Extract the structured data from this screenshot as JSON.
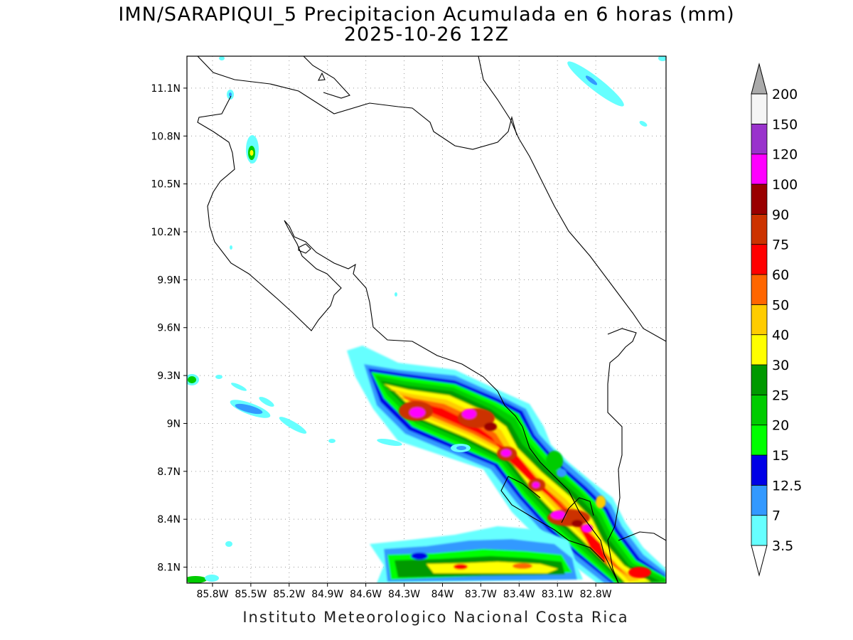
{
  "title": "IMN/SARAPIQUI_5 Precipitacion Acumulada en 6 horas (mm)",
  "subtitle": "2025-10-26 12Z",
  "credit": "Instituto Meteorologico Nacional Costa Rica",
  "map": {
    "lon_range": [
      -86.0,
      -82.25
    ],
    "lat_range": [
      8.0,
      11.3
    ],
    "lon_ticks": [
      "85.8W",
      "85.5W",
      "85.2W",
      "84.9W",
      "84.6W",
      "84.3W",
      "84W",
      "83.7W",
      "83.4W",
      "83.1W",
      "82.8W"
    ],
    "lat_ticks": [
      "11.1N",
      "10.8N",
      "10.5N",
      "10.2N",
      "9.9N",
      "9.6N",
      "9.3N",
      "9N",
      "8.7N",
      "8.4N",
      "8.1N"
    ],
    "grid": true
  },
  "colorbar": {
    "levels": [
      "3.5",
      "7",
      "12.5",
      "15",
      "20",
      "25",
      "30",
      "40",
      "50",
      "60",
      "75",
      "90",
      "100",
      "120",
      "150",
      "200"
    ],
    "colors": [
      "#66ffff",
      "#3399ff",
      "#0000e6",
      "#00ff00",
      "#00cc00",
      "#009900",
      "#ffff00",
      "#ffcc00",
      "#ff6600",
      "#ff0000",
      "#cc3300",
      "#990000",
      "#ff00ff",
      "#9933cc",
      "#f5f5f5",
      "#aaaaaa"
    ]
  }
}
